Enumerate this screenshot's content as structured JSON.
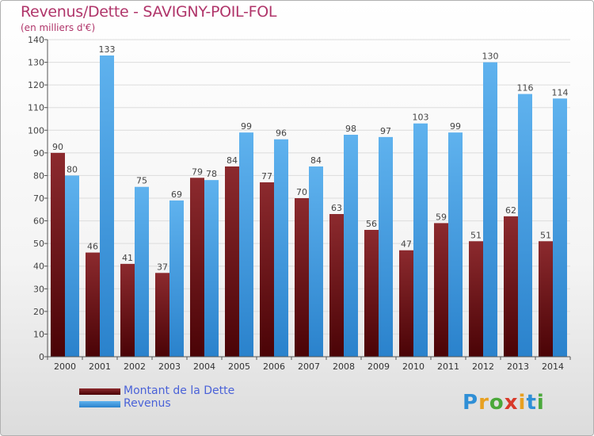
{
  "chart_data": {
    "type": "bar",
    "title": "Revenus/Dette - SAVIGNY-POIL-FOL",
    "subtitle": "(en milliers d'€)",
    "categories": [
      "2000",
      "2001",
      "2002",
      "2003",
      "2004",
      "2005",
      "2006",
      "2007",
      "2008",
      "2009",
      "2010",
      "2011",
      "2012",
      "2013",
      "2014"
    ],
    "series": [
      {
        "name": "Montant de la Dette",
        "color": "#6e0e12",
        "values": [
          90,
          46,
          41,
          37,
          79,
          84,
          77,
          70,
          63,
          56,
          47,
          59,
          51,
          62,
          51
        ]
      },
      {
        "name": "Revenus",
        "color": "#4aa3e4",
        "values": [
          80,
          133,
          75,
          69,
          78,
          99,
          96,
          84,
          98,
          97,
          103,
          99,
          130,
          116,
          114
        ]
      }
    ],
    "ylim": [
      0,
      140
    ],
    "yticks": [
      0,
      10,
      20,
      30,
      40,
      50,
      60,
      70,
      80,
      90,
      100,
      110,
      120,
      130,
      140
    ],
    "grid": true,
    "legend": "bottom-left"
  },
  "logo": {
    "text": "Proxiti"
  }
}
